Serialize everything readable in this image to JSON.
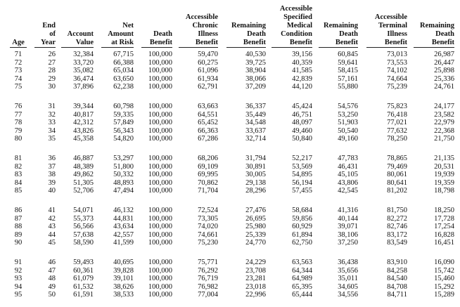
{
  "table": {
    "headers": [
      [
        "Age"
      ],
      [
        "End",
        "of",
        "Year"
      ],
      [
        "Account",
        "Value"
      ],
      [
        "Net",
        "Amount",
        "at Risk"
      ],
      [
        "Death",
        "Benefit"
      ],
      [
        "Accessible",
        "Chronic",
        "Illness",
        "Benefit"
      ],
      [
        "Remaining",
        "Death",
        "Benefit"
      ],
      [
        "Accessible",
        "Specified",
        "Medical",
        "Condition",
        "Benefit"
      ],
      [
        "Remaining",
        "Death",
        "Benefit"
      ],
      [
        "Accessible",
        "Terminal",
        "Illness",
        "Benefit"
      ],
      [
        "Remaining",
        "Death",
        "Benefit"
      ]
    ],
    "groups": [
      [
        [
          "71",
          "26",
          "32,384",
          "67,715",
          "100,000",
          "59,470",
          "40,530",
          "39,156",
          "60,845",
          "73,013",
          "26,987"
        ],
        [
          "72",
          "27",
          "33,720",
          "66,388",
          "100,000",
          "60,275",
          "39,725",
          "40,359",
          "59,641",
          "73,553",
          "26,447"
        ],
        [
          "73",
          "28",
          "35,082",
          "65,034",
          "100,000",
          "61,096",
          "38,904",
          "41,585",
          "58,415",
          "74,102",
          "25,898"
        ],
        [
          "74",
          "29",
          "36,474",
          "63,650",
          "100,000",
          "61,934",
          "38,066",
          "42,839",
          "57,161",
          "74,664",
          "25,336"
        ],
        [
          "75",
          "30",
          "37,896",
          "62,238",
          "100,000",
          "62,791",
          "37,209",
          "44,120",
          "55,880",
          "75,239",
          "24,761"
        ]
      ],
      [
        [
          "76",
          "31",
          "39,344",
          "60,798",
          "100,000",
          "63,663",
          "36,337",
          "45,424",
          "54,576",
          "75,823",
          "24,177"
        ],
        [
          "77",
          "32",
          "40,817",
          "59,335",
          "100,000",
          "64,551",
          "35,449",
          "46,751",
          "53,250",
          "76,418",
          "23,582"
        ],
        [
          "78",
          "33",
          "42,312",
          "57,849",
          "100,000",
          "65,452",
          "34,548",
          "48,097",
          "51,903",
          "77,021",
          "22,979"
        ],
        [
          "79",
          "34",
          "43,826",
          "56,343",
          "100,000",
          "66,363",
          "33,637",
          "49,460",
          "50,540",
          "77,632",
          "22,368"
        ],
        [
          "80",
          "35",
          "45,358",
          "54,820",
          "100,000",
          "67,286",
          "32,714",
          "50,840",
          "49,160",
          "78,250",
          "21,750"
        ]
      ],
      [
        [
          "81",
          "36",
          "46,887",
          "53,297",
          "100,000",
          "68,206",
          "31,794",
          "52,217",
          "47,783",
          "78,865",
          "21,135"
        ],
        [
          "82",
          "37",
          "48,389",
          "51,800",
          "100,000",
          "69,109",
          "30,891",
          "53,569",
          "46,431",
          "79,469",
          "20,531"
        ],
        [
          "83",
          "38",
          "49,862",
          "50,332",
          "100,000",
          "69,995",
          "30,005",
          "54,895",
          "45,105",
          "80,061",
          "19,939"
        ],
        [
          "84",
          "39",
          "51,305",
          "48,893",
          "100,000",
          "70,862",
          "29,138",
          "56,194",
          "43,806",
          "80,641",
          "19,359"
        ],
        [
          "85",
          "40",
          "52,706",
          "47,494",
          "100,000",
          "71,704",
          "28,296",
          "57,455",
          "42,545",
          "81,202",
          "18,798"
        ]
      ],
      [
        [
          "86",
          "41",
          "54,071",
          "46,132",
          "100,000",
          "72,524",
          "27,476",
          "58,684",
          "41,316",
          "81,750",
          "18,250"
        ],
        [
          "87",
          "42",
          "55,373",
          "44,831",
          "100,000",
          "73,305",
          "26,695",
          "59,856",
          "40,144",
          "82,272",
          "17,728"
        ],
        [
          "88",
          "43",
          "56,566",
          "43,634",
          "100,000",
          "74,020",
          "25,980",
          "60,929",
          "39,071",
          "82,746",
          "17,254"
        ],
        [
          "89",
          "44",
          "57,638",
          "42,557",
          "100,000",
          "74,661",
          "25,339",
          "61,894",
          "38,106",
          "83,172",
          "16,828"
        ],
        [
          "90",
          "45",
          "58,590",
          "41,599",
          "100,000",
          "75,230",
          "24,770",
          "62,750",
          "37,250",
          "83,549",
          "16,451"
        ]
      ],
      [
        [
          "91",
          "46",
          "59,493",
          "40,695",
          "100,000",
          "75,771",
          "24,229",
          "63,563",
          "36,438",
          "83,910",
          "16,090"
        ],
        [
          "92",
          "47",
          "60,361",
          "39,828",
          "100,000",
          "76,292",
          "23,708",
          "64,344",
          "35,656",
          "84,258",
          "15,742"
        ],
        [
          "93",
          "48",
          "61,079",
          "39,101",
          "100,000",
          "76,719",
          "23,281",
          "64,989",
          "35,011",
          "84,540",
          "15,460"
        ],
        [
          "94",
          "49",
          "61,532",
          "38,626",
          "100,000",
          "76,982",
          "23,018",
          "65,395",
          "34,605",
          "84,708",
          "15,292"
        ],
        [
          "95",
          "50",
          "61,591",
          "38,533",
          "100,000",
          "77,004",
          "22,996",
          "65,444",
          "34,556",
          "84,711",
          "15,289"
        ]
      ]
    ]
  }
}
